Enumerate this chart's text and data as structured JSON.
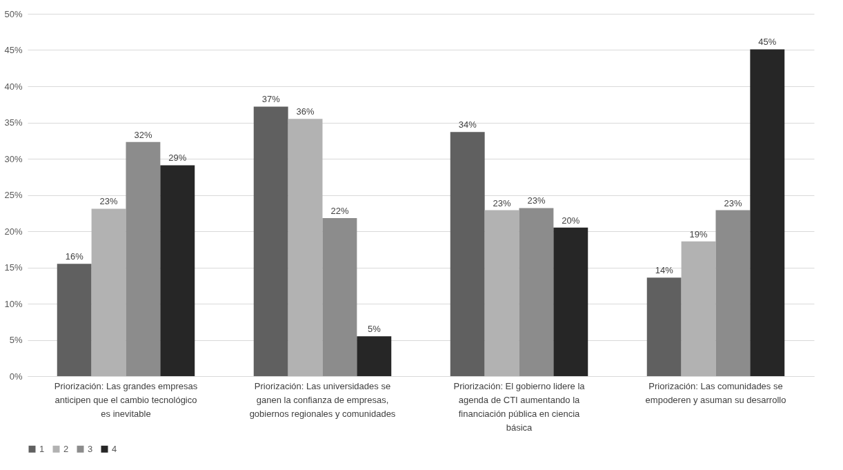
{
  "chart_data": {
    "type": "bar",
    "categories": [
      "Priorización: Las grandes empresas anticipen que el cambio tecnológico es inevitable",
      "Priorización: Las universidades se ganen la confianza de empresas, gobiernos regionales y comunidades",
      "Priorización: El gobierno lidere la agenda de CTI aumentando la financiación pública en ciencia básica",
      "Priorización: Las comunidades se empoderen y asuman su desarrollo"
    ],
    "series": [
      {
        "name": "1",
        "color": "#606060",
        "values": [
          15.5,
          37.2,
          33.7,
          13.6
        ],
        "value_labels": [
          "16%",
          "37%",
          "34%",
          "14%"
        ]
      },
      {
        "name": "2",
        "color": "#b2b2b2",
        "values": [
          23.1,
          35.5,
          22.9,
          18.6
        ],
        "value_labels": [
          "23%",
          "36%",
          "23%",
          "19%"
        ]
      },
      {
        "name": "3",
        "color": "#8c8c8c",
        "values": [
          32.3,
          21.8,
          23.2,
          22.9
        ],
        "value_labels": [
          "32%",
          "22%",
          "23%",
          "23%"
        ]
      },
      {
        "name": "4",
        "color": "#262626",
        "values": [
          29.1,
          5.5,
          20.5,
          45.1
        ],
        "value_labels": [
          "29%",
          "5%",
          "20%",
          "45%"
        ]
      }
    ],
    "ylim": [
      0,
      50
    ],
    "yticks": [
      {
        "value": 0,
        "label": "0%"
      },
      {
        "value": 5,
        "label": "5%"
      },
      {
        "value": 10,
        "label": "10%"
      },
      {
        "value": 15,
        "label": "15%"
      },
      {
        "value": 20,
        "label": "20%"
      },
      {
        "value": 25,
        "label": "25%"
      },
      {
        "value": 30,
        "label": "30%"
      },
      {
        "value": 35,
        "label": "35%"
      },
      {
        "value": 40,
        "label": "40%"
      },
      {
        "value": 45,
        "label": "45%"
      },
      {
        "value": 50,
        "label": "50%"
      }
    ],
    "grid": "y",
    "legend": "bottom"
  }
}
